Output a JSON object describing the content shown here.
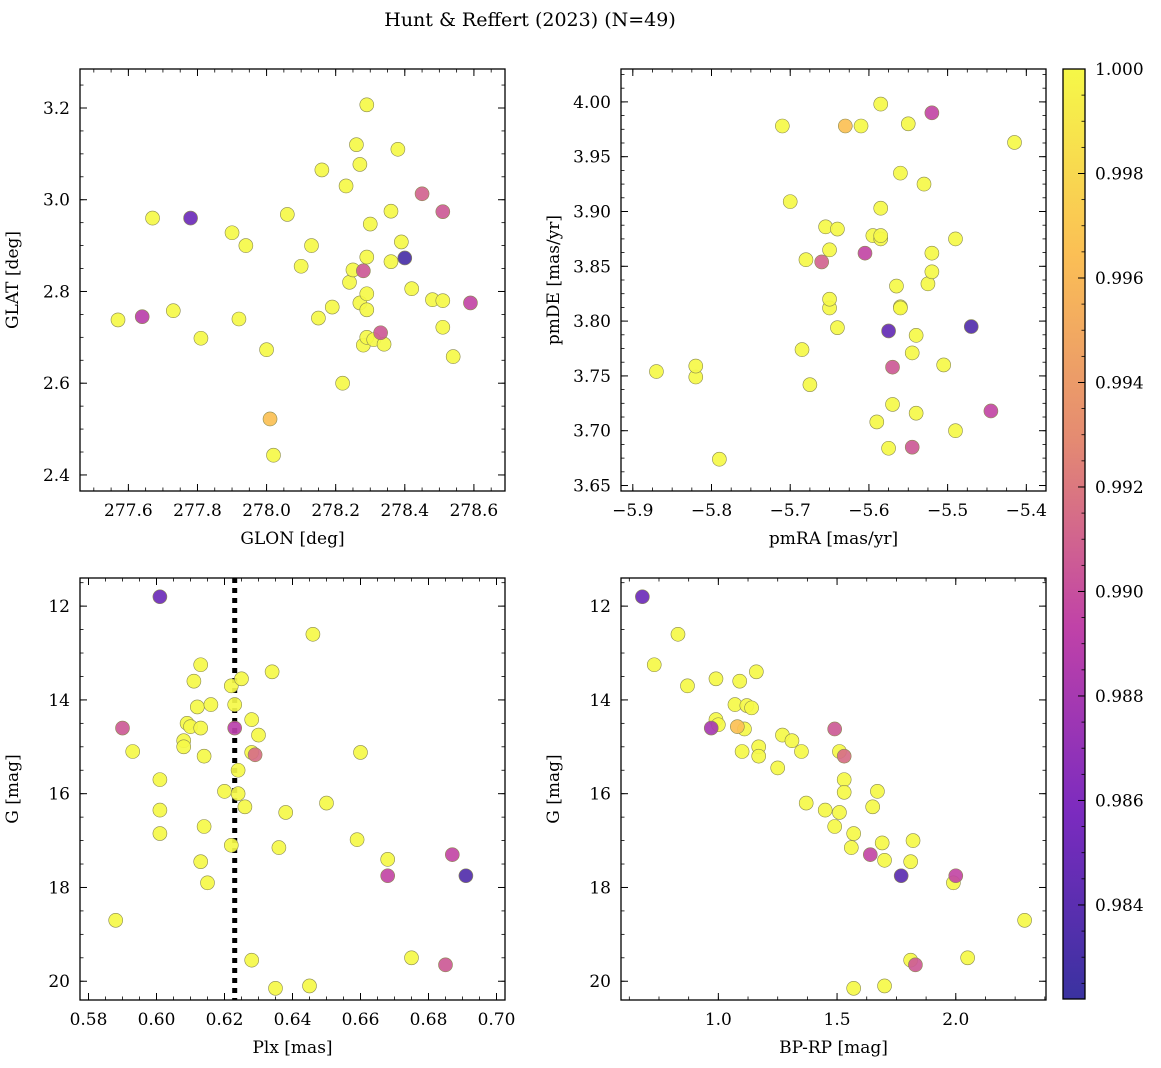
{
  "figure": {
    "title": "Hunt & Reffert (2023) (N=49)"
  },
  "colorbar": {
    "min": 0.9822,
    "max": 1.0,
    "ticks": [
      0.984,
      0.986,
      0.988,
      0.99,
      0.992,
      0.994,
      0.996,
      0.998,
      1.0
    ],
    "tick_labels": [
      "0.984",
      "0.986",
      "0.988",
      "0.990",
      "0.992",
      "0.994",
      "0.996",
      "0.998",
      "1.000"
    ],
    "colormap": "plasma-truncated",
    "stops": [
      "#3a32a0",
      "#7b2bbf",
      "#c042a8",
      "#e48a72",
      "#fbbf55",
      "#f5f848"
    ]
  },
  "chart_data": [
    {
      "type": "scatter",
      "xlabel": "GLON [deg]",
      "ylabel": "GLAT [deg]",
      "xlim": [
        277.46,
        278.69
      ],
      "ylim": [
        2.365,
        3.285
      ],
      "xticks": [
        277.6,
        277.8,
        278.0,
        278.2,
        278.4,
        278.6
      ],
      "xtick_labels": [
        "277.6",
        "277.8",
        "278.0",
        "278.2",
        "278.4",
        "278.6"
      ],
      "yticks": [
        2.4,
        2.6,
        2.8,
        3.0,
        3.2
      ],
      "ytick_labels": [
        "2.4",
        "2.6",
        "2.8",
        "3.0",
        "3.2"
      ],
      "invert_y": false,
      "points": [
        [
          277.57,
          2.738,
          1.0
        ],
        [
          277.64,
          2.745,
          0.989
        ],
        [
          277.67,
          2.96,
          1.0
        ],
        [
          277.73,
          2.758,
          1.0
        ],
        [
          277.78,
          2.96,
          0.985
        ],
        [
          277.81,
          2.698,
          1.0
        ],
        [
          277.9,
          2.928,
          1.0
        ],
        [
          277.92,
          2.74,
          1.0
        ],
        [
          277.94,
          2.9,
          1.0
        ],
        [
          278.0,
          2.673,
          1.0
        ],
        [
          278.01,
          2.522,
          0.9965
        ],
        [
          278.02,
          2.443,
          1.0
        ],
        [
          278.06,
          2.968,
          1.0
        ],
        [
          278.1,
          2.855,
          1.0
        ],
        [
          278.13,
          2.9,
          1.0
        ],
        [
          278.15,
          2.742,
          1.0
        ],
        [
          278.16,
          3.065,
          1.0
        ],
        [
          278.19,
          2.766,
          1.0
        ],
        [
          278.22,
          2.6,
          1.0
        ],
        [
          278.23,
          3.03,
          1.0
        ],
        [
          278.24,
          2.82,
          1.0
        ],
        [
          278.25,
          2.847,
          1.0
        ],
        [
          278.26,
          3.12,
          1.0
        ],
        [
          278.27,
          2.775,
          1.0
        ],
        [
          278.27,
          3.077,
          1.0
        ],
        [
          278.28,
          2.845,
          0.9905
        ],
        [
          278.28,
          2.683,
          1.0
        ],
        [
          278.29,
          2.795,
          1.0
        ],
        [
          278.29,
          2.76,
          1.0
        ],
        [
          278.29,
          2.875,
          1.0
        ],
        [
          278.29,
          2.7,
          1.0
        ],
        [
          278.29,
          3.207,
          1.0
        ],
        [
          278.3,
          2.947,
          1.0
        ],
        [
          278.31,
          2.695,
          1.0
        ],
        [
          278.33,
          2.71,
          0.9905
        ],
        [
          278.34,
          2.685,
          1.0
        ],
        [
          278.36,
          2.975,
          1.0
        ],
        [
          278.36,
          2.865,
          1.0
        ],
        [
          278.38,
          3.11,
          1.0
        ],
        [
          278.39,
          2.908,
          1.0
        ],
        [
          278.4,
          2.873,
          0.983
        ],
        [
          278.42,
          2.806,
          1.0
        ],
        [
          278.45,
          3.013,
          0.991
        ],
        [
          278.48,
          2.782,
          1.0
        ],
        [
          278.51,
          2.974,
          0.9905
        ],
        [
          278.51,
          2.78,
          1.0
        ],
        [
          278.51,
          2.722,
          1.0
        ],
        [
          278.54,
          2.658,
          1.0
        ],
        [
          278.59,
          2.775,
          0.9895
        ]
      ]
    },
    {
      "type": "scatter",
      "xlabel": "pmRA [mas/yr]",
      "ylabel": "pmDE [mas/yr]",
      "xlim": [
        -5.915,
        -5.375
      ],
      "ylim": [
        3.645,
        4.03
      ],
      "xticks": [
        -5.9,
        -5.8,
        -5.7,
        -5.6,
        -5.5,
        -5.4
      ],
      "xtick_labels": [
        "−5.9",
        "−5.8",
        "−5.7",
        "−5.6",
        "−5.5",
        "−5.4"
      ],
      "yticks": [
        3.65,
        3.7,
        3.75,
        3.8,
        3.85,
        3.9,
        3.95,
        4.0
      ],
      "ytick_labels": [
        "3.65",
        "3.70",
        "3.75",
        "3.80",
        "3.85",
        "3.90",
        "3.95",
        "4.00"
      ],
      "invert_y": false,
      "points": [
        [
          -5.87,
          3.754,
          1.0
        ],
        [
          -5.82,
          3.749,
          1.0
        ],
        [
          -5.82,
          3.759,
          1.0
        ],
        [
          -5.79,
          3.674,
          1.0
        ],
        [
          -5.71,
          3.978,
          1.0
        ],
        [
          -5.7,
          3.909,
          1.0
        ],
        [
          -5.685,
          3.774,
          1.0
        ],
        [
          -5.68,
          3.856,
          1.0
        ],
        [
          -5.675,
          3.742,
          1.0
        ],
        [
          -5.66,
          3.854,
          0.991
        ],
        [
          -5.655,
          3.886,
          1.0
        ],
        [
          -5.65,
          3.812,
          1.0
        ],
        [
          -5.65,
          3.82,
          1.0
        ],
        [
          -5.65,
          3.865,
          1.0
        ],
        [
          -5.64,
          3.884,
          1.0
        ],
        [
          -5.64,
          3.794,
          1.0
        ],
        [
          -5.63,
          3.978,
          0.9965
        ],
        [
          -5.61,
          3.978,
          1.0
        ],
        [
          -5.605,
          3.862,
          0.9895
        ],
        [
          -5.595,
          3.878,
          1.0
        ],
        [
          -5.59,
          3.708,
          1.0
        ],
        [
          -5.585,
          3.875,
          1.0
        ],
        [
          -5.585,
          3.878,
          1.0
        ],
        [
          -5.585,
          3.903,
          1.0
        ],
        [
          -5.585,
          3.998,
          1.0
        ],
        [
          -5.575,
          3.791,
          0.9845
        ],
        [
          -5.575,
          3.684,
          1.0
        ],
        [
          -5.57,
          3.724,
          1.0
        ],
        [
          -5.57,
          3.758,
          0.9905
        ],
        [
          -5.565,
          3.832,
          1.0
        ],
        [
          -5.56,
          3.813,
          1.0
        ],
        [
          -5.56,
          3.935,
          1.0
        ],
        [
          -5.56,
          3.812,
          1.0
        ],
        [
          -5.55,
          3.98,
          1.0
        ],
        [
          -5.545,
          3.771,
          1.0
        ],
        [
          -5.545,
          3.685,
          0.9905
        ],
        [
          -5.54,
          3.787,
          1.0
        ],
        [
          -5.54,
          3.716,
          1.0
        ],
        [
          -5.53,
          3.925,
          1.0
        ],
        [
          -5.525,
          3.834,
          1.0
        ],
        [
          -5.52,
          3.99,
          0.9895
        ],
        [
          -5.52,
          3.845,
          1.0
        ],
        [
          -5.52,
          3.862,
          1.0
        ],
        [
          -5.505,
          3.76,
          1.0
        ],
        [
          -5.49,
          3.7,
          1.0
        ],
        [
          -5.49,
          3.875,
          1.0
        ],
        [
          -5.47,
          3.795,
          0.9835
        ],
        [
          -5.445,
          3.718,
          0.9895
        ],
        [
          -5.415,
          3.963,
          1.0
        ]
      ]
    },
    {
      "type": "scatter",
      "xlabel": "Plx [mas]",
      "ylabel": "G [mag]",
      "xlim": [
        0.5775,
        0.7025
      ],
      "ylim": [
        20.4,
        11.4
      ],
      "xticks": [
        0.58,
        0.6,
        0.62,
        0.64,
        0.66,
        0.68,
        0.7
      ],
      "xtick_labels": [
        "0.58",
        "0.60",
        "0.62",
        "0.64",
        "0.66",
        "0.68",
        "0.70"
      ],
      "yticks": [
        12,
        14,
        16,
        18,
        20
      ],
      "ytick_labels": [
        "12",
        "14",
        "16",
        "18",
        "20"
      ],
      "invert_y": true,
      "vline": 0.623,
      "points": [
        [
          0.588,
          18.7,
          1.0
        ],
        [
          0.59,
          14.6,
          0.9905
        ],
        [
          0.593,
          15.1,
          1.0
        ],
        [
          0.601,
          11.8,
          0.985
        ],
        [
          0.601,
          15.7,
          1.0
        ],
        [
          0.601,
          16.35,
          1.0
        ],
        [
          0.601,
          16.85,
          1.0
        ],
        [
          0.608,
          14.87,
          1.0
        ],
        [
          0.608,
          15.0,
          1.0
        ],
        [
          0.609,
          14.5,
          1.0
        ],
        [
          0.61,
          14.57,
          1.0
        ],
        [
          0.611,
          13.6,
          1.0
        ],
        [
          0.612,
          14.15,
          1.0
        ],
        [
          0.613,
          13.25,
          1.0
        ],
        [
          0.613,
          14.6,
          1.0
        ],
        [
          0.613,
          17.45,
          1.0
        ],
        [
          0.614,
          15.2,
          1.0
        ],
        [
          0.614,
          16.7,
          1.0
        ],
        [
          0.615,
          17.9,
          1.0
        ],
        [
          0.616,
          14.1,
          1.0
        ],
        [
          0.62,
          15.95,
          1.0
        ],
        [
          0.622,
          17.1,
          1.0
        ],
        [
          0.622,
          13.7,
          1.0
        ],
        [
          0.623,
          14.6,
          0.989
        ],
        [
          0.623,
          14.1,
          1.0
        ],
        [
          0.624,
          15.5,
          1.0
        ],
        [
          0.624,
          16.0,
          1.0
        ],
        [
          0.625,
          13.55,
          1.0
        ],
        [
          0.626,
          16.28,
          1.0
        ],
        [
          0.628,
          19.55,
          1.0
        ],
        [
          0.628,
          14.42,
          1.0
        ],
        [
          0.628,
          15.12,
          1.0
        ],
        [
          0.629,
          15.17,
          0.9915
        ],
        [
          0.63,
          14.75,
          1.0
        ],
        [
          0.634,
          13.4,
          1.0
        ],
        [
          0.635,
          20.15,
          1.0
        ],
        [
          0.636,
          17.15,
          1.0
        ],
        [
          0.638,
          16.4,
          1.0
        ],
        [
          0.645,
          20.1,
          1.0
        ],
        [
          0.646,
          12.6,
          1.0
        ],
        [
          0.65,
          16.2,
          1.0
        ],
        [
          0.659,
          16.98,
          1.0
        ],
        [
          0.66,
          15.12,
          1.0
        ],
        [
          0.668,
          17.4,
          1.0
        ],
        [
          0.668,
          17.75,
          0.9895
        ],
        [
          0.675,
          19.5,
          1.0
        ],
        [
          0.685,
          19.65,
          0.9905
        ],
        [
          0.687,
          17.3,
          0.9895
        ],
        [
          0.691,
          17.75,
          0.9835
        ]
      ]
    },
    {
      "type": "scatter",
      "xlabel": "BP-RP [mag]",
      "ylabel": "G [mag]",
      "xlim": [
        0.59,
        2.38
      ],
      "ylim": [
        20.4,
        11.4
      ],
      "xticks": [
        1.0,
        1.5,
        2.0
      ],
      "xtick_labels": [
        "1.0",
        "1.5",
        "2.0"
      ],
      "yticks": [
        12,
        14,
        16,
        18,
        20
      ],
      "ytick_labels": [
        "12",
        "14",
        "16",
        "18",
        "20"
      ],
      "invert_y": true,
      "points": [
        [
          0.68,
          11.8,
          0.985
        ],
        [
          0.73,
          13.25,
          1.0
        ],
        [
          0.83,
          12.6,
          1.0
        ],
        [
          0.87,
          13.7,
          1.0
        ],
        [
          0.97,
          14.6,
          0.988
        ],
        [
          0.99,
          13.55,
          1.0
        ],
        [
          0.99,
          14.42,
          1.0
        ],
        [
          1.0,
          14.53,
          1.0
        ],
        [
          1.07,
          14.1,
          1.0
        ],
        [
          1.08,
          14.57,
          0.9965
        ],
        [
          1.09,
          13.6,
          1.0
        ],
        [
          1.1,
          15.1,
          1.0
        ],
        [
          1.11,
          14.62,
          1.0
        ],
        [
          1.12,
          14.12,
          1.0
        ],
        [
          1.14,
          14.17,
          1.0
        ],
        [
          1.16,
          13.4,
          1.0
        ],
        [
          1.17,
          15.0,
          1.0
        ],
        [
          1.17,
          15.2,
          1.0
        ],
        [
          1.25,
          15.45,
          1.0
        ],
        [
          1.27,
          14.75,
          1.0
        ],
        [
          1.31,
          14.87,
          1.0
        ],
        [
          1.35,
          15.1,
          1.0
        ],
        [
          1.37,
          16.2,
          1.0
        ],
        [
          1.45,
          16.35,
          1.0
        ],
        [
          1.49,
          14.62,
          0.9905
        ],
        [
          1.49,
          16.7,
          1.0
        ],
        [
          1.51,
          15.1,
          1.0
        ],
        [
          1.51,
          16.4,
          1.0
        ],
        [
          1.53,
          15.2,
          0.9915
        ],
        [
          1.53,
          15.7,
          1.0
        ],
        [
          1.53,
          15.97,
          1.0
        ],
        [
          1.56,
          17.15,
          1.0
        ],
        [
          1.57,
          16.85,
          1.0
        ],
        [
          1.57,
          20.15,
          1.0
        ],
        [
          1.64,
          17.3,
          0.9895
        ],
        [
          1.65,
          16.28,
          1.0
        ],
        [
          1.67,
          15.95,
          1.0
        ],
        [
          1.69,
          17.05,
          1.0
        ],
        [
          1.7,
          17.42,
          1.0
        ],
        [
          1.7,
          20.1,
          1.0
        ],
        [
          1.77,
          17.75,
          0.984
        ],
        [
          1.81,
          17.45,
          1.0
        ],
        [
          1.81,
          19.55,
          1.0
        ],
        [
          1.82,
          17.0,
          1.0
        ],
        [
          1.83,
          19.65,
          0.9905
        ],
        [
          1.99,
          17.9,
          1.0
        ],
        [
          2.0,
          17.75,
          0.9895
        ],
        [
          2.05,
          19.5,
          1.0
        ],
        [
          2.29,
          18.7,
          1.0
        ]
      ]
    }
  ]
}
